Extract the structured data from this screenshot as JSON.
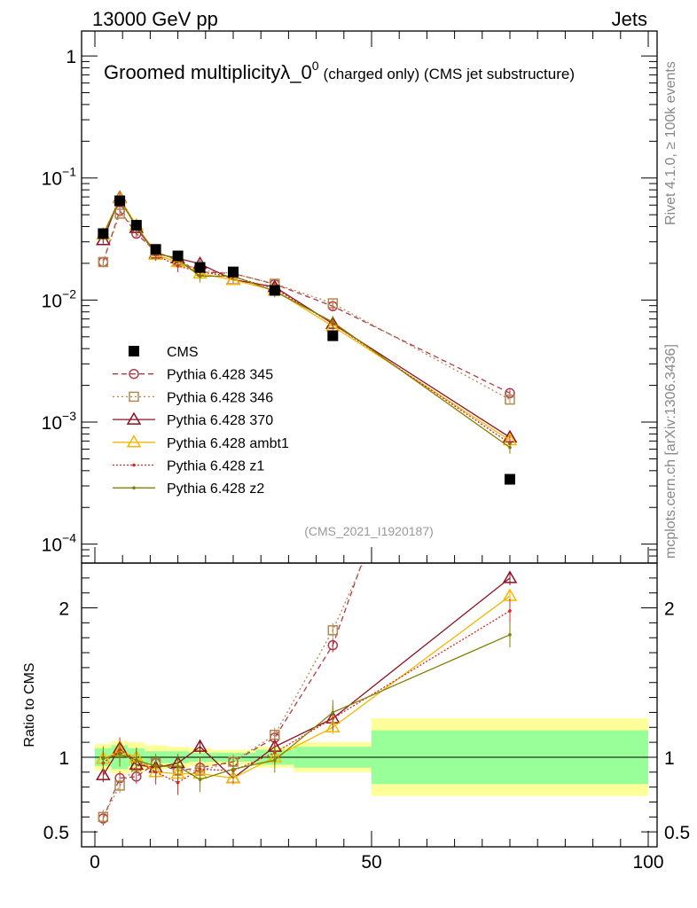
{
  "header": {
    "left": "13000 GeV pp",
    "right": "Jets"
  },
  "side_labels": {
    "top": "Rivet 4.1.0, ≥ 100k events",
    "bottom": "mcplots.cern.ch [arXiv:1306.3436]"
  },
  "chart_data": {
    "type": "line",
    "title_main": "Groomed multiplicityλ_0",
    "title_sup": "0",
    "title_suffix": "(charged only) (CMS jet substructure)",
    "analysis": "(CMS_2021_I1920187)",
    "xlabel": "",
    "ylabel_ratio": "Ratio to CMS",
    "xlim": [
      -2,
      100
    ],
    "ylim_main": [
      7e-05,
      1.6
    ],
    "yscale_main": "log",
    "ylim_ratio": [
      0.4,
      2.3
    ],
    "x_ticks": [
      "0",
      "50",
      "100"
    ],
    "y_ticks_main": [
      {
        "value": 1,
        "mantissa": "1",
        "exp": ""
      },
      {
        "value": 0.1,
        "mantissa": "10",
        "exp": "−1"
      },
      {
        "value": 0.01,
        "mantissa": "10",
        "exp": "−2"
      },
      {
        "value": 0.001,
        "mantissa": "10",
        "exp": "−3"
      },
      {
        "value": 0.0001,
        "mantissa": "10",
        "exp": "−4"
      }
    ],
    "y_ticks_ratio": [
      {
        "value": 0.5,
        "label": "0.5"
      },
      {
        "value": 1,
        "label": "1"
      },
      {
        "value": 2,
        "label": "2"
      }
    ],
    "bins": [
      [
        0,
        3
      ],
      [
        3,
        6
      ],
      [
        6,
        9
      ],
      [
        9,
        13
      ],
      [
        13,
        17
      ],
      [
        17,
        21
      ],
      [
        21,
        29
      ],
      [
        29,
        36
      ],
      [
        36,
        50
      ],
      [
        50,
        100
      ]
    ],
    "x": [
      1.5,
      4.5,
      7.5,
      11,
      15,
      19,
      25,
      32.5,
      43,
      75
    ],
    "data": {
      "name": "CMS",
      "values": [
        0.035,
        0.065,
        0.041,
        0.026,
        0.023,
        0.0185,
        0.017,
        0.012,
        0.0051,
        0.00034
      ],
      "stat_band": [
        0.06,
        0.08,
        0.06,
        0.04,
        0.04,
        0.03,
        0.03,
        0.05,
        0.07,
        0.18
      ],
      "total_band": [
        0.09,
        0.11,
        0.1,
        0.08,
        0.07,
        0.06,
        0.05,
        0.07,
        0.1,
        0.26
      ],
      "color": "#000000"
    },
    "series": [
      {
        "name": "Pythia 6.428 345",
        "color": "#b03a48",
        "dash": "6,4",
        "marker": "circle",
        "values": [
          0.0205,
          0.054,
          0.035,
          0.025,
          0.021,
          0.017,
          0.0165,
          0.0135,
          0.0089,
          0.00173
        ],
        "ratio": [
          0.59,
          0.86,
          0.87,
          0.96,
          0.91,
          0.93,
          0.97,
          1.13,
          1.75,
          5.1
        ]
      },
      {
        "name": "Pythia 6.428 346",
        "color": "#b4884c",
        "dash": "2,3",
        "marker": "square",
        "values": [
          0.0205,
          0.051,
          0.039,
          0.025,
          0.021,
          0.0175,
          0.0165,
          0.0136,
          0.0094,
          0.00153
        ],
        "ratio": [
          0.6,
          0.81,
          0.94,
          0.96,
          0.91,
          0.91,
          0.97,
          1.15,
          1.85,
          4.5
        ]
      },
      {
        "name": "Pythia 6.428 370",
        "color": "#8c1020",
        "dash": "",
        "marker": "triangle",
        "values": [
          0.031,
          0.069,
          0.039,
          0.024,
          0.022,
          0.0198,
          0.0147,
          0.0128,
          0.0064,
          0.00075
        ],
        "ratio": [
          0.88,
          1.06,
          0.95,
          0.93,
          0.96,
          1.07,
          0.86,
          1.07,
          1.26,
          2.2
        ]
      },
      {
        "name": "Pythia 6.428 ambt1",
        "color": "#f5b800",
        "dash": "",
        "marker": "triangle",
        "values": [
          0.0345,
          0.068,
          0.041,
          0.0235,
          0.0205,
          0.0165,
          0.0146,
          0.012,
          0.0061,
          0.00071
        ],
        "ratio": [
          0.99,
          1.04,
          1.0,
          0.9,
          0.89,
          0.89,
          0.86,
          1.0,
          1.2,
          2.08
        ]
      },
      {
        "name": "Pythia 6.428 z1",
        "color": "#d8281e",
        "dash": "2,2",
        "marker": "dot",
        "values": [
          0.0335,
          0.068,
          0.04,
          0.0235,
          0.019,
          0.017,
          0.0155,
          0.0124,
          0.0064,
          0.00067
        ],
        "ratio": [
          0.96,
          1.05,
          0.98,
          0.9,
          0.83,
          0.92,
          0.91,
          1.03,
          1.26,
          1.98
        ]
      },
      {
        "name": "Pythia 6.428 z2",
        "color": "#808000",
        "dash": "",
        "marker": "dot",
        "values": [
          0.0345,
          0.066,
          0.04,
          0.0245,
          0.0215,
          0.0157,
          0.0157,
          0.0118,
          0.0066,
          0.00062
        ],
        "ratio": [
          0.99,
          1.02,
          0.98,
          0.94,
          0.94,
          0.85,
          0.92,
          0.98,
          1.3,
          1.82
        ]
      }
    ]
  }
}
